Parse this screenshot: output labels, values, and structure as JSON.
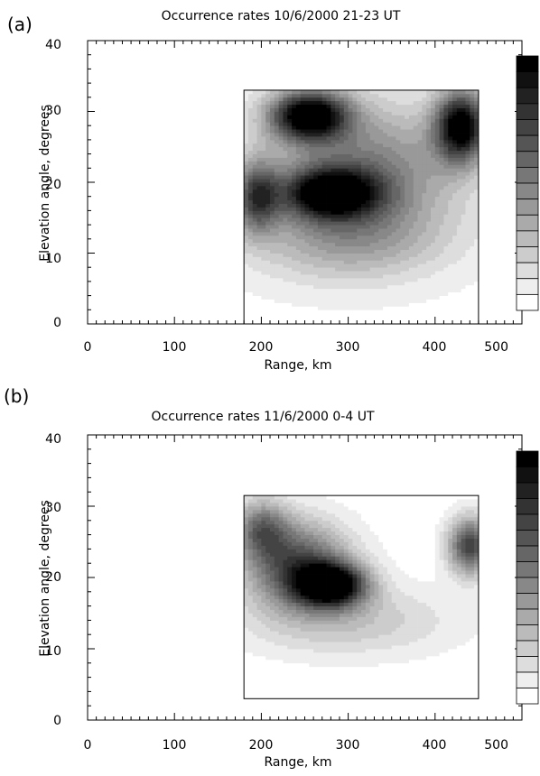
{
  "figure": {
    "background": "#ffffff",
    "line_color": "#000000"
  },
  "chart_data": [
    {
      "type": "heatmap",
      "panel_label": "(a)",
      "title": "Occurrence rates 10/6/2000 21-23 UT",
      "xlabel": "Range, km",
      "ylabel": "Elevation angle, degrees",
      "xlim": [
        0,
        500
      ],
      "ylim": [
        0,
        40
      ],
      "xticks": [
        0,
        100,
        200,
        300,
        400,
        500
      ],
      "yticks": [
        0,
        10,
        20,
        30,
        40
      ],
      "colorbar_levels": 16,
      "colormap": "grayscale, light (low) to dark (high)",
      "data_extent": {
        "range_km": [
          180,
          450
        ],
        "elevation_deg": [
          0,
          33
        ]
      },
      "blobs": [
        {
          "x": 255,
          "y": 29.5,
          "sx": 45,
          "sy": 3.5,
          "amp": 1.0
        },
        {
          "x": 430,
          "y": 28,
          "sx": 30,
          "sy": 5,
          "amp": 0.95
        },
        {
          "x": 280,
          "y": 18.5,
          "sx": 55,
          "sy": 3.5,
          "amp": 0.85
        },
        {
          "x": 195,
          "y": 18,
          "sx": 25,
          "sy": 5,
          "amp": 0.6
        },
        {
          "x": 320,
          "y": 22,
          "sx": 110,
          "sy": 9,
          "amp": 0.45
        },
        {
          "x": 300,
          "y": 12,
          "sx": 110,
          "sy": 6,
          "amp": 0.3
        }
      ],
      "base_level": 0.04
    },
    {
      "type": "heatmap",
      "panel_label": "(b)",
      "title": "Occurrence rates 11/6/2000 0-4 UT",
      "xlabel": "Range, km",
      "ylabel": "Elevation angle, degrees",
      "xlim": [
        0,
        500
      ],
      "ylim": [
        0,
        40
      ],
      "xticks": [
        0,
        100,
        200,
        300,
        400,
        500
      ],
      "yticks": [
        0,
        10,
        20,
        30,
        40
      ],
      "colorbar_levels": 16,
      "colormap": "grayscale, light (low) to dark (high)",
      "data_extent": {
        "range_km": [
          180,
          450
        ],
        "elevation_deg": [
          3,
          31.5
        ]
      },
      "blobs": [
        {
          "x": 280,
          "y": 19,
          "sx": 40,
          "sy": 3,
          "amp": 1.0
        },
        {
          "x": 240,
          "y": 22,
          "sx": 60,
          "sy": 6,
          "amp": 0.65
        },
        {
          "x": 440,
          "y": 24.5,
          "sx": 25,
          "sy": 4,
          "amp": 0.7
        },
        {
          "x": 200,
          "y": 27,
          "sx": 30,
          "sy": 4,
          "amp": 0.45
        },
        {
          "x": 300,
          "y": 14,
          "sx": 120,
          "sy": 5,
          "amp": 0.22
        }
      ],
      "base_level": 0.02
    }
  ]
}
